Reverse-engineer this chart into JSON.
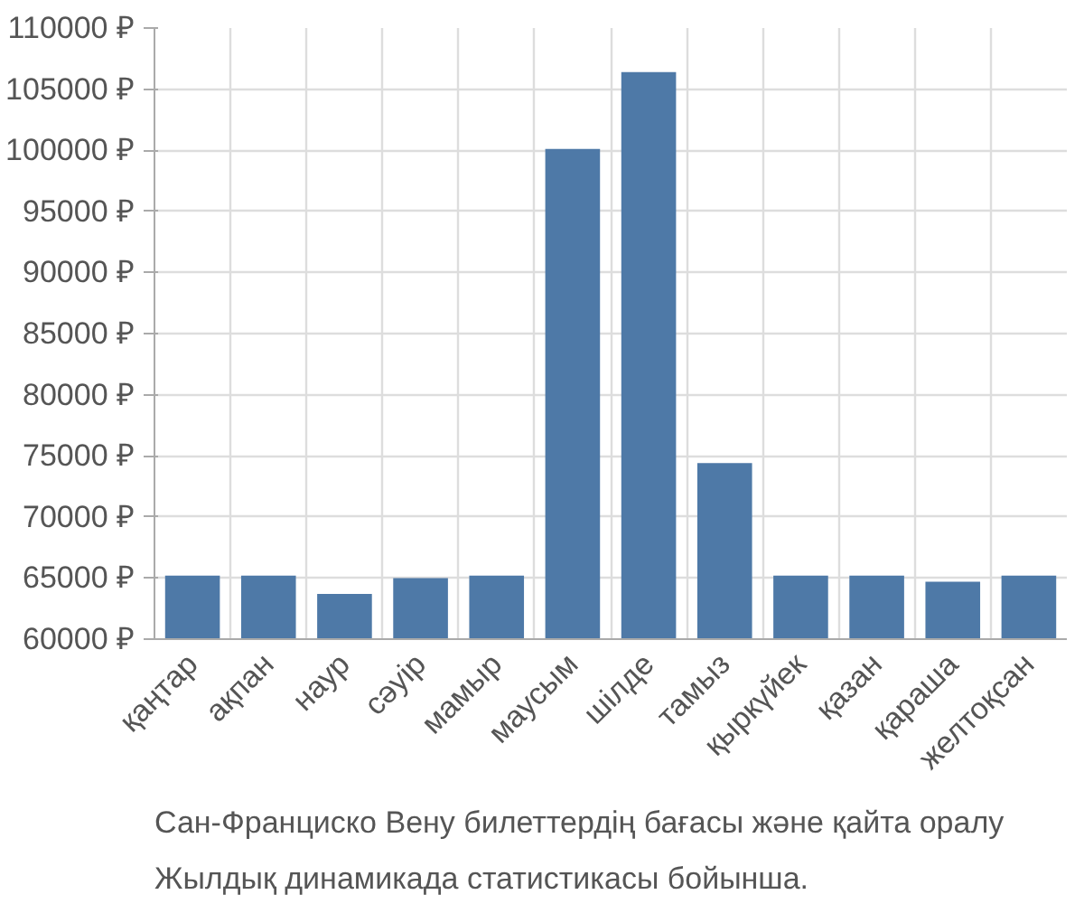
{
  "chart_data": {
    "type": "bar",
    "categories": [
      "қаңтар",
      "ақпан",
      "наур",
      "сәуір",
      "мамыр",
      "маусым",
      "шілде",
      "тамыз",
      "қыркүйек",
      "қазан",
      "қараша",
      "желтоқсан"
    ],
    "values": [
      65200,
      65200,
      63700,
      65000,
      65200,
      100100,
      106400,
      74400,
      65200,
      65200,
      64700,
      65200
    ],
    "color": "#4e79a7",
    "ylim": [
      60000,
      110000
    ],
    "yticks": [
      {
        "value": 60000,
        "label": "60000 ₽"
      },
      {
        "value": 65000,
        "label": "65000 ₽"
      },
      {
        "value": 70000,
        "label": "70000 ₽"
      },
      {
        "value": 75000,
        "label": "75000 ₽"
      },
      {
        "value": 80000,
        "label": "80000 ₽"
      },
      {
        "value": 85000,
        "label": "85000 ₽"
      },
      {
        "value": 90000,
        "label": "90000 ₽"
      },
      {
        "value": 95000,
        "label": "95000 ₽"
      },
      {
        "value": 100000,
        "label": "100000 ₽"
      },
      {
        "value": 105000,
        "label": "105000 ₽"
      },
      {
        "value": 110000,
        "label": "110000 ₽"
      }
    ],
    "grid": true,
    "annotations": [
      "Сан-Франциско Вену билеттердің бағасы және қайта оралу",
      "Жылдық динамикада статистикасы бойынша."
    ]
  }
}
